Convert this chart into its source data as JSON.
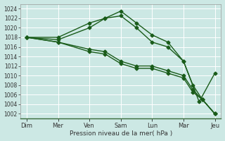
{
  "xlabel": "Pression niveau de la mer( hPa )",
  "background_color": "#cce8e4",
  "grid_color": "#ffffff",
  "line_color": "#1a5c1a",
  "ylim": [
    1001,
    1025
  ],
  "ytick_min": 1002,
  "ytick_max": 1024,
  "ytick_step": 2,
  "xlim": [
    -0.2,
    6.2
  ],
  "day_labels": [
    "Dim",
    "Mer",
    "Ven",
    "Sam",
    "Lun",
    "Mar",
    "Jeu"
  ],
  "day_positions": [
    0,
    1,
    2,
    3,
    4,
    5,
    6
  ],
  "series": [
    {
      "x": [
        0,
        1,
        2,
        2.5,
        3,
        3.5,
        4,
        4.5,
        5,
        5.5,
        6
      ],
      "y": [
        1018,
        1018,
        1021,
        1022,
        1023.5,
        1021,
        1018.5,
        1017,
        1013,
        1004.5,
        1010.5
      ]
    },
    {
      "x": [
        0,
        1,
        2,
        2.5,
        3,
        3.5,
        4,
        4.5,
        5,
        5.3,
        5.6,
        6
      ],
      "y": [
        1018,
        1017.5,
        1020,
        1022,
        1022.5,
        1020,
        1017,
        1016,
        1013,
        1008,
        1005,
        1002
      ]
    },
    {
      "x": [
        0,
        1,
        2,
        2.5,
        3,
        3.5,
        4,
        4.5,
        5,
        5.3,
        5.6,
        6
      ],
      "y": [
        1018,
        1017,
        1015.5,
        1015,
        1013,
        1012,
        1012,
        1011,
        1010,
        1007,
        1005,
        1002
      ]
    },
    {
      "x": [
        0,
        1,
        2,
        2.5,
        3,
        3.5,
        4,
        4.5,
        5,
        5.3,
        5.6,
        6
      ],
      "y": [
        1018,
        1017,
        1015,
        1014.5,
        1012.5,
        1011.5,
        1011.5,
        1010.5,
        1009.5,
        1006.5,
        1005,
        1002
      ]
    }
  ],
  "marker": "D",
  "marker_size": 2.5,
  "line_width": 1.0,
  "tick_fontsize": 5.5,
  "xlabel_fontsize": 6.5
}
